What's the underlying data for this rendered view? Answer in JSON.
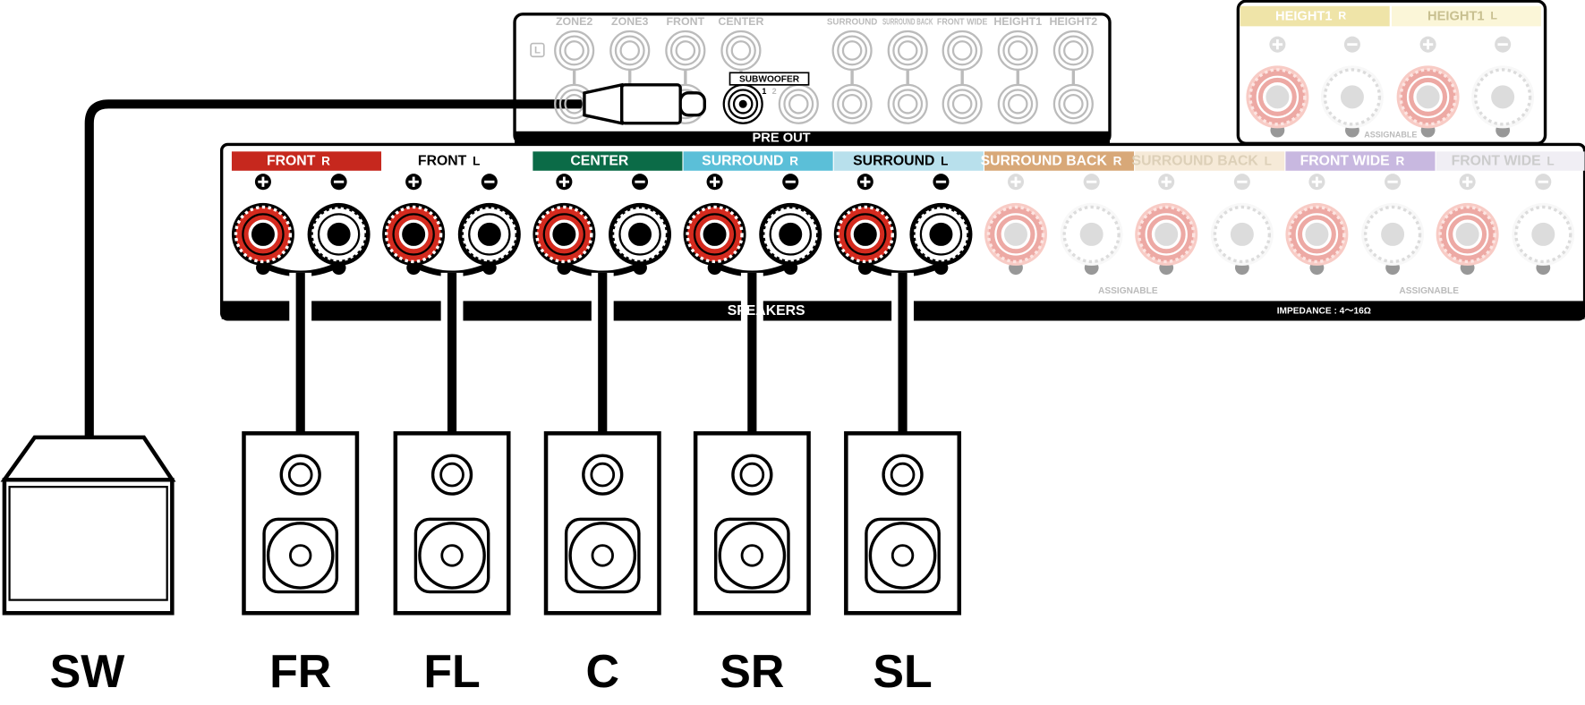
{
  "pre_out": {
    "channels": [
      "ZONE2",
      "ZONE3",
      "FRONT",
      "CENTER",
      "SURROUND",
      "SURROUND BACK",
      "FRONT WIDE",
      "HEIGHT1",
      "HEIGHT2"
    ],
    "side": "L",
    "subwoofer": "SUBWOOFER",
    "sub_ports": [
      "1",
      "2"
    ],
    "title": "PRE OUT"
  },
  "height_panel": {
    "terminals": [
      {
        "name": "HEIGHT1",
        "side": "R"
      },
      {
        "name": "HEIGHT1",
        "side": "L"
      }
    ],
    "note": "ASSIGNABLE"
  },
  "speaker_panel": {
    "terminals": [
      {
        "name": "FRONT",
        "side": "R"
      },
      {
        "name": "FRONT",
        "side": "L"
      },
      {
        "name": "CENTER"
      },
      {
        "name": "SURROUND",
        "side": "R"
      },
      {
        "name": "SURROUND",
        "side": "L"
      },
      {
        "name": "SURROUND BACK",
        "side": "R"
      },
      {
        "name": "SURROUND BACK",
        "side": "L"
      },
      {
        "name": "FRONT WIDE",
        "side": "R"
      },
      {
        "name": "FRONT WIDE",
        "side": "L"
      }
    ],
    "title": "SPEAKERS",
    "impedance": "IMPEDANCE : 4～16Ω",
    "notes": [
      "ASSIGNABLE",
      "ASSIGNABLE"
    ]
  },
  "speakers": [
    "SW",
    "FR",
    "FL",
    "C",
    "SR",
    "SL"
  ]
}
